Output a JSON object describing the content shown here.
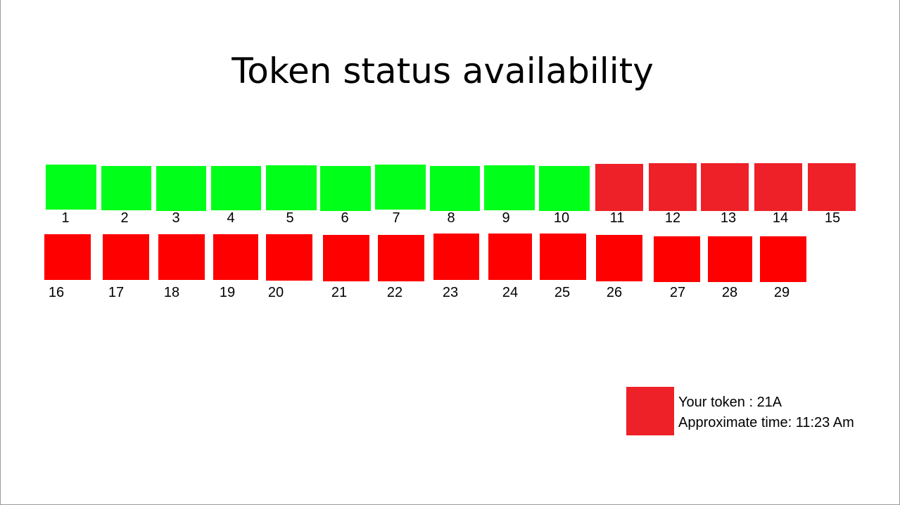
{
  "title": "Token status availability",
  "colors": {
    "available": "#00ff19",
    "taken_dark": "#ee2128",
    "taken_bright": "#ff0000"
  },
  "row1": [
    {
      "label": "1",
      "status": "available"
    },
    {
      "label": "2",
      "status": "available"
    },
    {
      "label": "3",
      "status": "available"
    },
    {
      "label": "4",
      "status": "available"
    },
    {
      "label": "5",
      "status": "available"
    },
    {
      "label": "6",
      "status": "available"
    },
    {
      "label": "7",
      "status": "available"
    },
    {
      "label": "8",
      "status": "available"
    },
    {
      "label": "9",
      "status": "available"
    },
    {
      "label": "10",
      "status": "available"
    },
    {
      "label": "11",
      "status": "taken_dark"
    },
    {
      "label": "12",
      "status": "taken_dark"
    },
    {
      "label": "13",
      "status": "taken_dark"
    },
    {
      "label": "14",
      "status": "taken_dark"
    },
    {
      "label": "15",
      "status": "taken_dark"
    }
  ],
  "row2": [
    {
      "label": "16",
      "status": "taken_bright"
    },
    {
      "label": "17",
      "status": "taken_bright"
    },
    {
      "label": "18",
      "status": "taken_bright"
    },
    {
      "label": "19",
      "status": "taken_bright"
    },
    {
      "label": "20",
      "status": "taken_bright"
    },
    {
      "label": "21",
      "status": "taken_bright"
    },
    {
      "label": "22",
      "status": "taken_bright"
    },
    {
      "label": "23",
      "status": "taken_bright"
    },
    {
      "label": "24",
      "status": "taken_bright"
    },
    {
      "label": "25",
      "status": "taken_bright"
    },
    {
      "label": "26",
      "status": "taken_bright"
    },
    {
      "label": "27",
      "status": "taken_bright"
    },
    {
      "label": "28",
      "status": "taken_bright"
    },
    {
      "label": "29",
      "status": "taken_bright"
    }
  ],
  "legend": {
    "status": "taken_dark",
    "token_line": "Your token : 21A",
    "time_line": "Approximate time: 11:23 Am"
  }
}
